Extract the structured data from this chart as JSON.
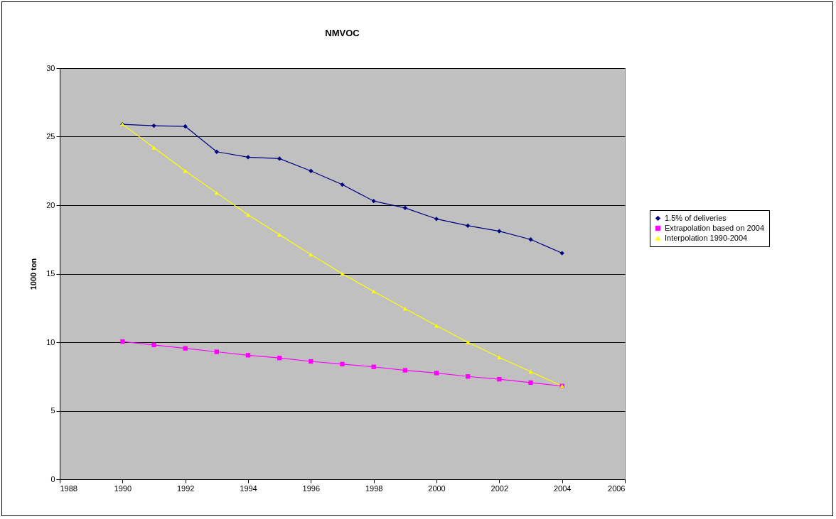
{
  "chart_data": {
    "type": "line",
    "title": "NMVOC",
    "ylabel": "1000 ton",
    "x": [
      1990,
      1991,
      1992,
      1993,
      1994,
      1995,
      1996,
      1997,
      1998,
      1999,
      2000,
      2001,
      2002,
      2003,
      2004
    ],
    "series": [
      {
        "name": "1.5% of deliveries",
        "color": "#000080",
        "marker": "diamond",
        "values": [
          25.9,
          25.8,
          25.75,
          23.9,
          23.5,
          23.4,
          22.5,
          21.5,
          20.3,
          19.8,
          19.0,
          18.5,
          18.1,
          17.5,
          16.5
        ]
      },
      {
        "name": "Extrapolation based on 2004",
        "color": "#ff00ff",
        "marker": "square",
        "values": [
          10.05,
          9.8,
          9.55,
          9.3,
          9.05,
          8.85,
          8.6,
          8.4,
          8.2,
          7.95,
          7.75,
          7.5,
          7.3,
          7.05,
          6.8
        ]
      },
      {
        "name": "Interpolation 1990-2004",
        "color": "#ffff00",
        "marker": "triangle",
        "values": [
          25.9,
          24.2,
          22.5,
          20.9,
          19.3,
          17.85,
          16.4,
          15.0,
          13.7,
          12.45,
          11.2,
          10.0,
          8.9,
          7.85,
          6.8
        ]
      }
    ],
    "xlim": [
      1988,
      2006
    ],
    "xticks": [
      1988,
      1990,
      1992,
      1994,
      1996,
      1998,
      2000,
      2002,
      2004,
      2006
    ],
    "ylim": [
      0,
      30
    ],
    "yticks": [
      0,
      5,
      10,
      15,
      20,
      25,
      30
    ],
    "grid": "y",
    "legend": "right",
    "line_style": "solid"
  }
}
